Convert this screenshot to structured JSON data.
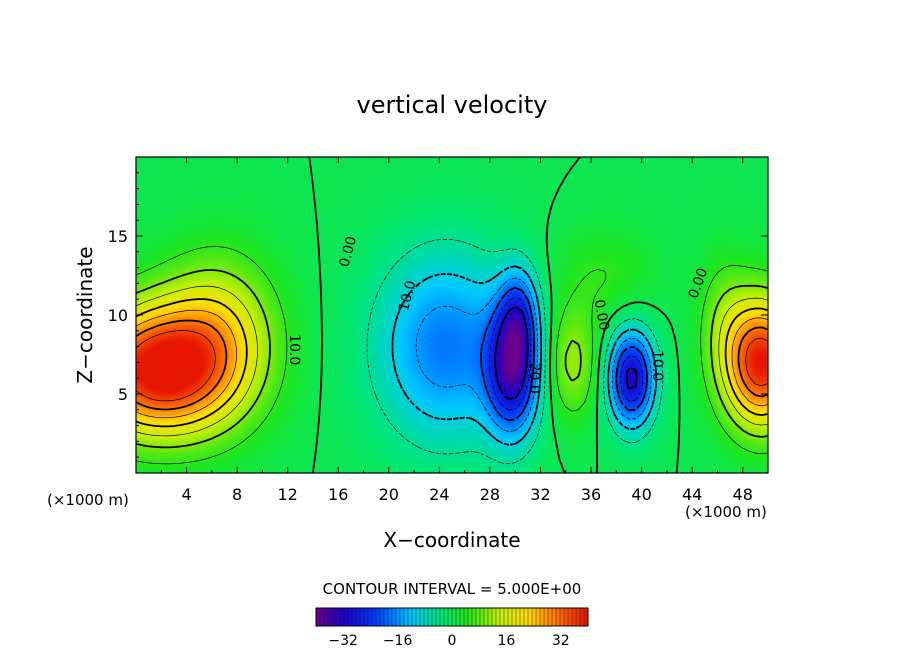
{
  "chart_data": {
    "type": "heatmap",
    "title": "vertical velocity",
    "xlabel": "X−coordinate",
    "ylabel": "Z−coordinate",
    "x_unit_left": "(×1000 m)",
    "x_unit_right": "(×1000 m)",
    "xlim": [
      0,
      50
    ],
    "ylim": [
      0,
      20
    ],
    "x_ticks": [
      4,
      8,
      12,
      16,
      20,
      24,
      28,
      32,
      36,
      40,
      44,
      48
    ],
    "x_tick_labels": [
      "4",
      "8",
      "12",
      "16",
      "20",
      "24",
      "28",
      "32",
      "36",
      "40",
      "44",
      "48"
    ],
    "y_ticks": [
      5,
      10,
      15
    ],
    "y_tick_labels": [
      "5",
      "10",
      "15"
    ],
    "contour_interval_text": "CONTOUR INTERVAL = 5.000E+00",
    "colorbar": {
      "range": [
        -40,
        40
      ],
      "ticks": [
        -32,
        -16,
        0,
        16,
        32
      ],
      "tick_labels": [
        "−32",
        "−16",
        "0",
        "16",
        "32"
      ]
    },
    "contour_labels": [
      {
        "text": "0.00",
        "x": 16.8,
        "y": 14.0,
        "rotate": -75
      },
      {
        "text": "10.0",
        "x": 12.5,
        "y": 7.8,
        "rotate": 90
      },
      {
        "text": "10.0",
        "x": 21.5,
        "y": 11.2,
        "rotate": -75
      },
      {
        "text": "20.0",
        "x": 31.5,
        "y": 6.0,
        "rotate": 90
      },
      {
        "text": "0.00",
        "x": 36.8,
        "y": 10.0,
        "rotate": 80
      },
      {
        "text": "10.0",
        "x": 41.2,
        "y": 6.8,
        "rotate": 90
      },
      {
        "text": "0.00",
        "x": 44.5,
        "y": 12.0,
        "rotate": -70
      }
    ],
    "features": [
      {
        "x": 1.5,
        "z": 6.5,
        "amp": 40,
        "sx": 5.5,
        "sz": 4.0
      },
      {
        "x": 6.5,
        "z": 8.5,
        "amp": 18,
        "sx": 4.5,
        "sz": 5.0
      },
      {
        "x": 49.5,
        "z": 7.0,
        "amp": 40,
        "sx": 3.0,
        "sz": 4.0
      },
      {
        "x": 24.5,
        "z": 8.0,
        "amp": -18,
        "sx": 5.5,
        "sz": 6.0
      },
      {
        "x": 29.8,
        "z": 6.5,
        "amp": -30,
        "sx": 2.0,
        "sz": 4.0
      },
      {
        "x": 30.3,
        "z": 10.0,
        "amp": -15,
        "sx": 1.5,
        "sz": 3.0
      },
      {
        "x": 34.5,
        "z": 7.0,
        "amp": 12,
        "sx": 2.0,
        "sz": 3.5
      },
      {
        "x": 39.2,
        "z": 6.0,
        "amp": -32,
        "sx": 1.8,
        "sz": 3.0
      },
      {
        "x": 37.0,
        "z": 12.5,
        "amp": 5,
        "sx": 4.0,
        "sz": 3.0
      },
      {
        "x": 46.5,
        "z": 10.0,
        "amp": 6,
        "sx": 2.0,
        "sz": 4.0
      }
    ]
  }
}
